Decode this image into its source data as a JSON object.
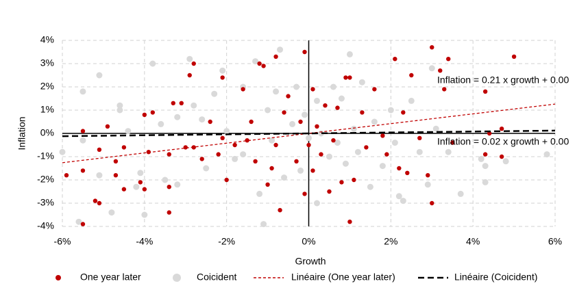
{
  "chart_data": {
    "type": "scatter",
    "x_label": "Growth",
    "y_label": "Inflation",
    "xlim": [
      -6,
      6
    ],
    "ylim": [
      -4,
      4
    ],
    "xticks": [
      {
        "value": -6,
        "label": "-6%"
      },
      {
        "value": -4,
        "label": "-4%"
      },
      {
        "value": -2,
        "label": "-2%"
      },
      {
        "value": 0,
        "label": "0%"
      },
      {
        "value": 2,
        "label": "2%"
      },
      {
        "value": 4,
        "label": "4%"
      },
      {
        "value": 6,
        "label": "6%"
      }
    ],
    "yticks": [
      {
        "value": -4,
        "label": "-4%"
      },
      {
        "value": -3,
        "label": "-3%"
      },
      {
        "value": -2,
        "label": "-2%"
      },
      {
        "value": -1,
        "label": "-1%"
      },
      {
        "value": 0,
        "label": "0%"
      },
      {
        "value": 1,
        "label": "1%"
      },
      {
        "value": 2,
        "label": "2%"
      },
      {
        "value": 3,
        "label": "3%"
      },
      {
        "value": 4,
        "label": "4%"
      }
    ],
    "grid": true,
    "series": [
      {
        "name": "Coicident",
        "color": "#d9d9d9",
        "x": [
          -6.0,
          -5.5,
          -5.5,
          -5.6,
          -5.1,
          -5.1,
          -4.8,
          -4.6,
          -4.6,
          -4.4,
          -4.2,
          -4.1,
          -4.0,
          -3.8,
          -3.6,
          -3.5,
          -3.2,
          -3.2,
          -2.9,
          -2.8,
          -2.6,
          -2.5,
          -2.3,
          -2.1,
          -2.0,
          -1.8,
          -1.6,
          -1.6,
          -1.3,
          -1.2,
          -1.1,
          -1.0,
          -0.9,
          -0.8,
          -0.7,
          -0.6,
          -0.4,
          -0.3,
          -0.2,
          -0.1,
          0.0,
          0.2,
          0.2,
          0.3,
          0.5,
          0.6,
          0.7,
          0.8,
          0.9,
          1.0,
          1.1,
          1.2,
          1.3,
          1.5,
          1.6,
          1.8,
          2.0,
          2.1,
          2.2,
          2.3,
          2.5,
          2.7,
          2.9,
          3.0,
          3.1,
          3.4,
          3.7,
          4.2,
          4.3,
          4.3,
          4.8,
          5.8
        ],
        "values": [
          -0.8,
          1.8,
          -0.3,
          -3.8,
          2.5,
          -1.8,
          -3.4,
          1.2,
          1.0,
          0.1,
          -2.3,
          -1.7,
          -3.5,
          3.0,
          0.4,
          -2.0,
          0.7,
          -2.2,
          3.2,
          1.2,
          0.6,
          -1.5,
          1.7,
          2.7,
          0.1,
          -1.1,
          2.0,
          -0.9,
          3.1,
          -2.6,
          -3.9,
          1.0,
          -0.3,
          1.8,
          3.6,
          -1.9,
          0.4,
          2.0,
          -1.6,
          0.8,
          -0.2,
          1.4,
          -3.0,
          0.0,
          -1.0,
          2.0,
          -0.4,
          1.5,
          -1.3,
          3.4,
          0.2,
          -0.8,
          2.2,
          -2.3,
          0.5,
          -1.4,
          1.0,
          -0.4,
          -2.7,
          -2.9,
          1.4,
          -0.8,
          -2.2,
          2.8,
          0.2,
          -0.8,
          -2.6,
          -1.1,
          -2.1,
          -1.4,
          -1.2,
          -0.9
        ]
      },
      {
        "name": "One year later",
        "color": "#c00000",
        "x": [
          -5.9,
          -5.5,
          -5.5,
          -5.5,
          -5.2,
          -5.1,
          -5.1,
          -4.9,
          -4.7,
          -4.7,
          -4.5,
          -4.5,
          -4.1,
          -4.0,
          -4.0,
          -3.9,
          -3.8,
          -3.4,
          -3.4,
          -3.4,
          -3.3,
          -3.1,
          -3.0,
          -2.9,
          -2.8,
          -2.8,
          -2.6,
          -2.4,
          -2.2,
          -2.1,
          -2.1,
          -2.0,
          -1.8,
          -1.6,
          -1.5,
          -1.4,
          -1.3,
          -1.2,
          -1.1,
          -1.0,
          -0.9,
          -0.8,
          -0.8,
          -0.7,
          -0.6,
          -0.5,
          -0.3,
          -0.2,
          -0.1,
          -0.1,
          0.0,
          0.1,
          0.1,
          0.2,
          0.3,
          0.4,
          0.5,
          0.6,
          0.7,
          0.8,
          0.9,
          1.0,
          1.0,
          1.1,
          1.3,
          1.4,
          1.6,
          1.8,
          1.9,
          2.1,
          2.2,
          2.3,
          2.4,
          2.5,
          2.7,
          2.9,
          3.0,
          3.0,
          3.2,
          3.4,
          3.3,
          3.5,
          4.3,
          4.3,
          4.4,
          4.7,
          5.0,
          4.7
        ],
        "values": [
          -1.8,
          0.1,
          -1.6,
          -3.9,
          -2.9,
          -3.0,
          -0.7,
          0.3,
          -1.8,
          -1.2,
          -0.6,
          -2.4,
          -2.1,
          -2.4,
          0.8,
          -0.8,
          0.9,
          -3.4,
          -0.9,
          -2.3,
          1.3,
          1.3,
          -0.6,
          2.5,
          3.0,
          -0.6,
          -1.1,
          0.5,
          -0.9,
          2.4,
          -0.2,
          -2.0,
          -0.5,
          1.9,
          -0.3,
          0.5,
          -1.2,
          3.0,
          2.9,
          -2.2,
          -1.5,
          3.3,
          -0.5,
          -3.3,
          0.9,
          1.6,
          -1.2,
          0.5,
          3.5,
          -2.6,
          -0.5,
          1.9,
          -1.6,
          0.3,
          -0.9,
          1.2,
          -2.5,
          -0.3,
          1.1,
          -2.1,
          2.4,
          2.4,
          -3.8,
          -2.0,
          0.9,
          -0.6,
          1.9,
          -0.1,
          -0.9,
          3.2,
          -1.5,
          0.9,
          -1.7,
          2.5,
          -0.2,
          -1.8,
          -3.0,
          3.7,
          2.7,
          3.2,
          1.9,
          -0.4,
          1.8,
          -0.9,
          0.0,
          0.2,
          3.3,
          -1.0
        ]
      }
    ],
    "trendlines": [
      {
        "name": "Linéaire (One year later)",
        "color": "#c00000",
        "slope": 0.21,
        "intercept": 0.0,
        "label": "Inflation = 0.21 x growth + 0.00"
      },
      {
        "name": "Linéaire (Coicident)",
        "color": "#000000",
        "slope": 0.02,
        "intercept": 0.0,
        "label": "Inflation = 0.02 x growth + 0.00"
      }
    ]
  }
}
